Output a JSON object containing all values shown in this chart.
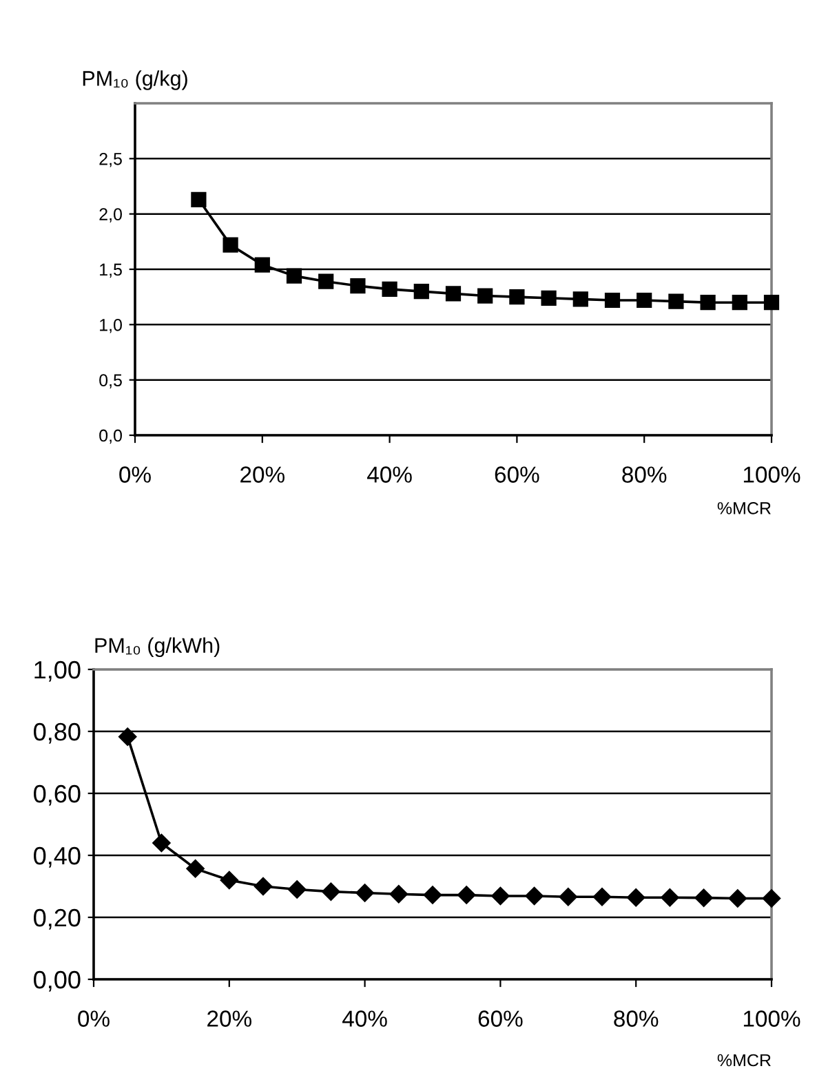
{
  "chart_data": [
    {
      "type": "line",
      "ylabel": "PM₁₀ (g/kg)",
      "xlabel": "%MCR",
      "x": [
        10,
        15,
        20,
        25,
        30,
        35,
        40,
        45,
        50,
        55,
        60,
        65,
        70,
        75,
        80,
        85,
        90,
        95,
        100
      ],
      "series": [
        {
          "color": "#000000",
          "values": [
            2.13,
            1.72,
            1.54,
            1.44,
            1.39,
            1.35,
            1.32,
            1.3,
            1.28,
            1.26,
            1.25,
            1.24,
            1.23,
            1.22,
            1.22,
            1.21,
            1.2,
            1.2,
            1.2
          ]
        }
      ],
      "marker": "square",
      "line_style": "solid",
      "grid": "y",
      "legend": false,
      "xlim": [
        0,
        100
      ],
      "ylim": [
        0,
        3
      ],
      "xticks": [
        {
          "value": 0,
          "label": "0%"
        },
        {
          "value": 20,
          "label": "20%"
        },
        {
          "value": 40,
          "label": "40%"
        },
        {
          "value": 60,
          "label": "60%"
        },
        {
          "value": 80,
          "label": "80%"
        },
        {
          "value": 100,
          "label": "100%"
        }
      ],
      "yticks": [
        {
          "value": 0,
          "label": "0,0"
        },
        {
          "value": 0.5,
          "label": "0,5"
        },
        {
          "value": 1,
          "label": "1,0"
        },
        {
          "value": 1.5,
          "label": "1,5"
        },
        {
          "value": 2,
          "label": "2,0"
        },
        {
          "value": 2.5,
          "label": "2,5"
        }
      ]
    },
    {
      "type": "line",
      "ylabel": "PM₁₀ (g/kWh)",
      "xlabel": "%MCR",
      "x": [
        5,
        10,
        15,
        20,
        25,
        30,
        35,
        40,
        45,
        50,
        55,
        60,
        65,
        70,
        75,
        80,
        85,
        90,
        95,
        100
      ],
      "series": [
        {
          "color": "#000000",
          "values": [
            0.783,
            0.44,
            0.357,
            0.32,
            0.3,
            0.29,
            0.283,
            0.279,
            0.275,
            0.272,
            0.272,
            0.269,
            0.269,
            0.266,
            0.266,
            0.264,
            0.264,
            0.263,
            0.261,
            0.261
          ]
        }
      ],
      "marker": "diamond",
      "line_style": "solid",
      "grid": "y",
      "legend": false,
      "xlim": [
        0,
        100
      ],
      "ylim": [
        0,
        1
      ],
      "xticks": [
        {
          "value": 0,
          "label": "0%"
        },
        {
          "value": 20,
          "label": "20%"
        },
        {
          "value": 40,
          "label": "40%"
        },
        {
          "value": 60,
          "label": "60%"
        },
        {
          "value": 80,
          "label": "80%"
        },
        {
          "value": 100,
          "label": "100%"
        }
      ],
      "yticks": [
        {
          "value": 0,
          "label": "0,00"
        },
        {
          "value": 0.2,
          "label": "0,20"
        },
        {
          "value": 0.4,
          "label": "0,40"
        },
        {
          "value": 0.6,
          "label": "0,60"
        },
        {
          "value": 0.8,
          "label": "0,80"
        },
        {
          "value": 1,
          "label": "1,00"
        }
      ]
    }
  ]
}
